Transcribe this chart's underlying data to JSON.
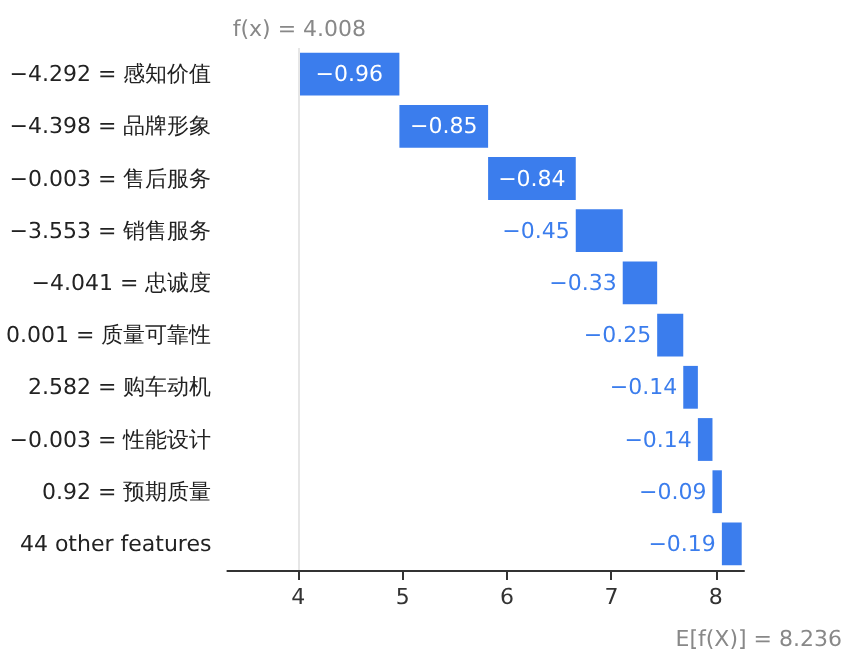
{
  "chart_data": {
    "type": "bar",
    "orientation": "horizontal",
    "categories": [
      "−4.292 = 感知价值",
      "−4.398 = 品牌形象",
      "−0.003 = 售后服务",
      "−3.553 = 销售服务",
      "−4.041 = 忠诚度",
      "0.001 = 质量可靠性",
      "2.582 = 购车动机",
      "−0.003 = 性能设计",
      "0.92 = 预期质量",
      "44 other features"
    ],
    "values": [
      -0.96,
      -0.85,
      -0.84,
      -0.45,
      -0.33,
      -0.25,
      -0.14,
      -0.14,
      -0.09,
      -0.19
    ],
    "base": [
      4.968,
      5.818,
      6.658,
      7.108,
      7.438,
      7.688,
      7.828,
      7.968,
      8.058,
      8.248
    ],
    "color": "#3b7ded",
    "data_labels": true,
    "xlim": [
      3.32,
      8.27
    ],
    "xticks": [
      4,
      5,
      6,
      7,
      8
    ],
    "grid": false,
    "ref_lines": [
      {
        "axis": "x",
        "value": 4.008,
        "label": "f(x) = 4.008",
        "color": "#e6e6e6"
      }
    ],
    "annotations": [
      "E[f(X)] = 8.236"
    ]
  }
}
